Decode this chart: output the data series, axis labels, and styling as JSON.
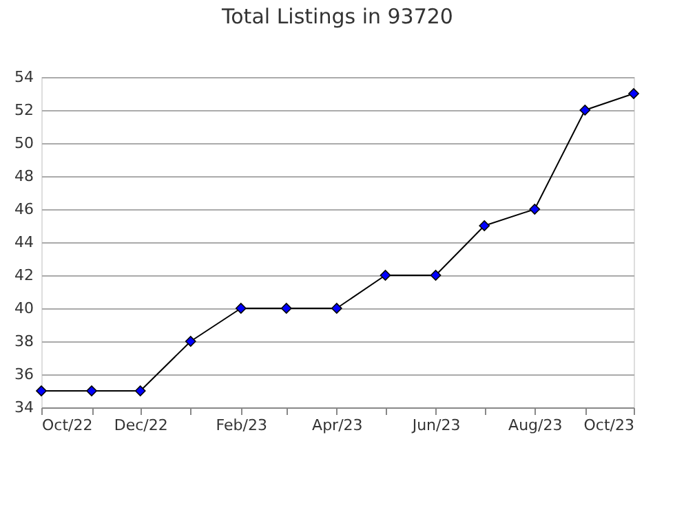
{
  "chart_data": {
    "type": "line",
    "title": "Total Listings in 93720",
    "x": [
      "2022-10",
      "2022-11",
      "2022-12",
      "2023-01",
      "2023-02",
      "2023-03",
      "2023-04",
      "2023-05",
      "2023-06",
      "2023-07",
      "2023-08",
      "2023-09",
      "2023-10"
    ],
    "xlim": [
      "2022-10",
      "2023-10"
    ],
    "xticks": [
      {
        "value": "2022-10",
        "label": "Oct/22"
      },
      {
        "value": "2022-11",
        "label": null
      },
      {
        "value": "2022-12",
        "label": "Dec/22"
      },
      {
        "value": "2023-01",
        "label": null
      },
      {
        "value": "2023-02",
        "label": "Feb/23"
      },
      {
        "value": "2023-03",
        "label": null
      },
      {
        "value": "2023-04",
        "label": "Apr/23"
      },
      {
        "value": "2023-05",
        "label": null
      },
      {
        "value": "2023-06",
        "label": "Jun/23"
      },
      {
        "value": "2023-07",
        "label": null
      },
      {
        "value": "2023-08",
        "label": "Aug/23"
      },
      {
        "value": "2023-09",
        "label": null
      },
      {
        "value": "2023-10",
        "label": "Oct/23"
      }
    ],
    "series": [
      {
        "color": "#000000",
        "marker": "none",
        "values": [
          35,
          35,
          35,
          38,
          40,
          40,
          40,
          42,
          42,
          45,
          46,
          52,
          53
        ]
      },
      {
        "type": "scatter",
        "color": "#0000ff",
        "values": [
          35,
          35,
          35,
          38,
          40,
          40,
          40,
          42,
          42,
          45,
          46,
          52,
          53
        ]
      }
    ],
    "ylim": [
      34,
      54
    ],
    "yticks": [
      34,
      36,
      38,
      40,
      42,
      44,
      46,
      48,
      50,
      52,
      54
    ],
    "grid": "y",
    "legend": false,
    "marker": "diamond",
    "line_style": "solid"
  }
}
